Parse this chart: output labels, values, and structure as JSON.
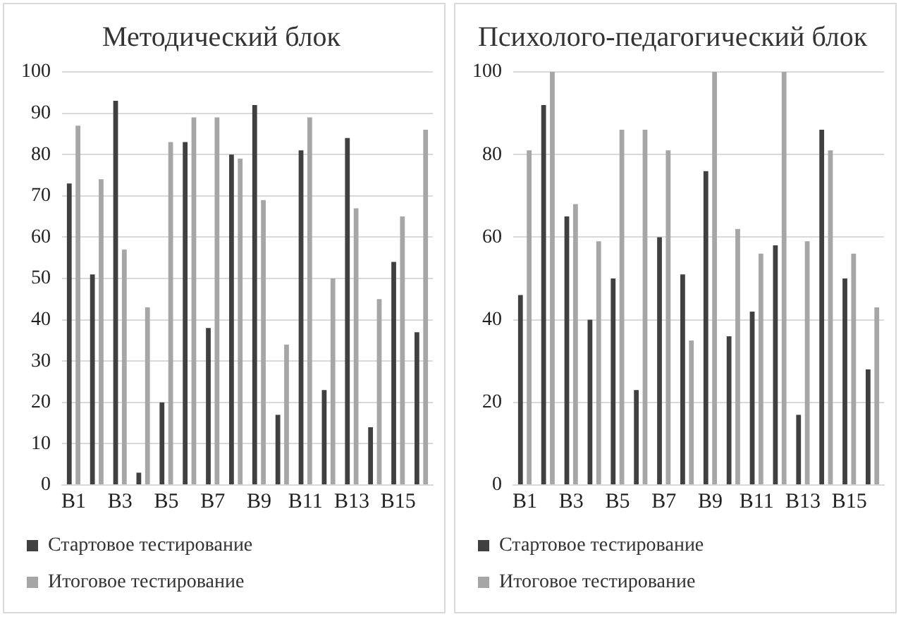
{
  "chart_data": [
    {
      "type": "bar",
      "title": "Методический блок",
      "categories": [
        "B1",
        null,
        "B3",
        null,
        "B5",
        null,
        "B7",
        null,
        "B9",
        null,
        "B11",
        null,
        "B13",
        null,
        "B15",
        null
      ],
      "series": [
        {
          "name": "Стартовое тестирование",
          "color": "#404040",
          "values": [
            73,
            51,
            93,
            3,
            20,
            83,
            38,
            80,
            92,
            17,
            81,
            23,
            84,
            14,
            54,
            37
          ]
        },
        {
          "name": "Итоговое тестирование",
          "color": "#a6a6a6",
          "values": [
            87,
            74,
            57,
            43,
            83,
            89,
            89,
            79,
            69,
            34,
            89,
            50,
            67,
            45,
            65,
            86
          ]
        }
      ],
      "ylim": [
        0,
        100
      ],
      "yticks": [
        0,
        10,
        20,
        30,
        40,
        50,
        60,
        70,
        80,
        90,
        100
      ],
      "grid": "y",
      "legend": "bottom"
    },
    {
      "type": "bar",
      "title": "Психолого-педагогический блок",
      "categories": [
        "B1",
        null,
        "B3",
        null,
        "B5",
        null,
        "B7",
        null,
        "B9",
        null,
        "B11",
        null,
        "B13",
        null,
        "B15",
        null
      ],
      "series": [
        {
          "name": "Стартовое тестирование",
          "color": "#404040",
          "values": [
            46,
            92,
            65,
            40,
            50,
            23,
            60,
            51,
            76,
            36,
            42,
            58,
            17,
            86,
            50,
            28
          ]
        },
        {
          "name": "Итоговое тестирование",
          "color": "#a6a6a6",
          "values": [
            81,
            100,
            68,
            59,
            86,
            86,
            81,
            35,
            100,
            62,
            56,
            100,
            59,
            81,
            56,
            43
          ]
        }
      ],
      "ylim": [
        0,
        100
      ],
      "yticks": [
        0,
        20,
        40,
        60,
        80,
        100
      ],
      "grid": "y",
      "legend": "bottom"
    }
  ]
}
